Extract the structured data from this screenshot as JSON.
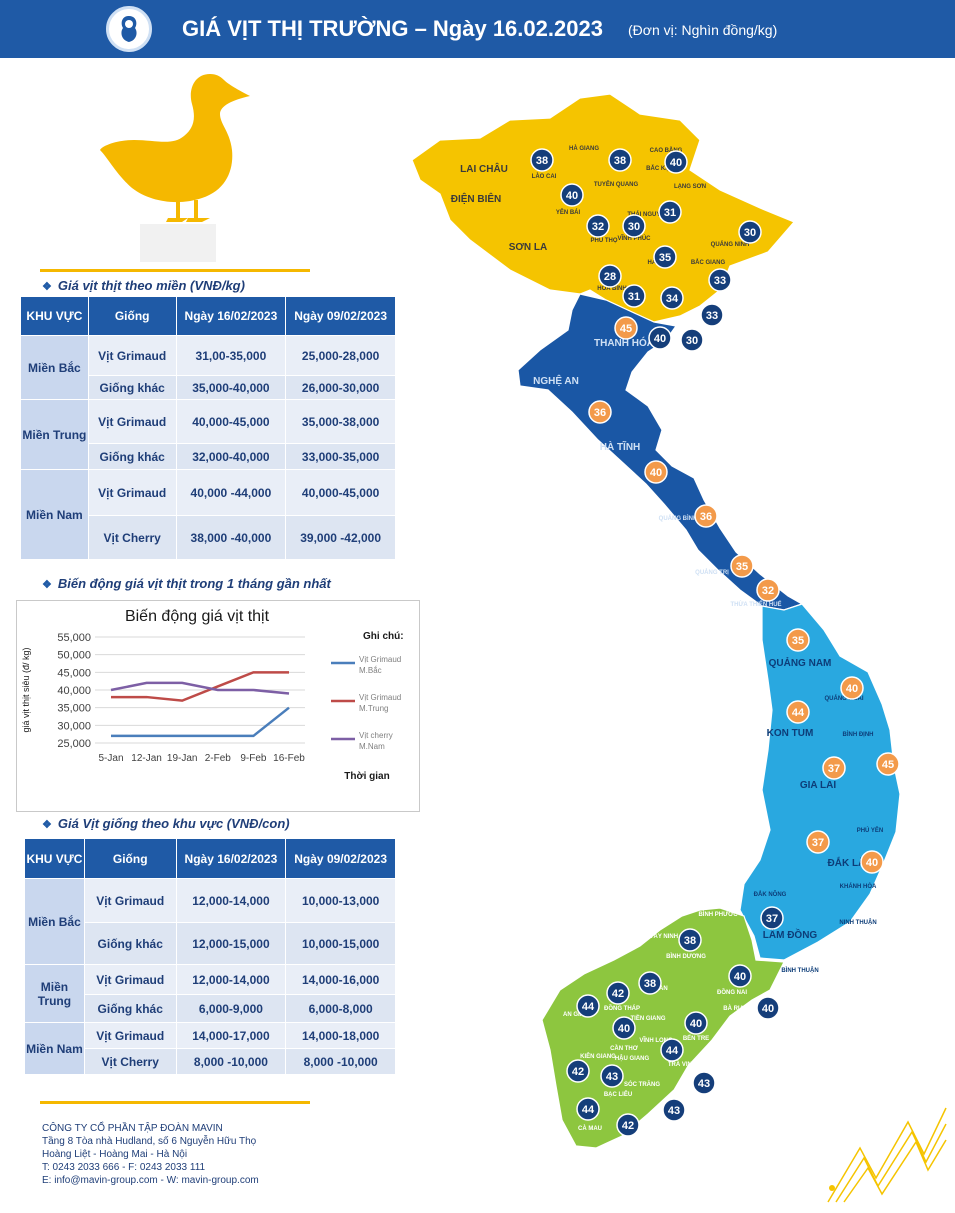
{
  "header": {
    "title": "GIÁ VỊT THỊ TRƯỜNG – Ngày 16.02.2023",
    "unit": "(Đơn vị: Nghìn đồng/kg)"
  },
  "section1": {
    "title": "Giá vịt thịt theo miền (VNĐ/kg)",
    "headers": [
      "KHU VỰC",
      "Giống",
      "Ngày 16/02/2023",
      "Ngày 09/02/2023"
    ],
    "regions": [
      {
        "name": "Miền Bắc",
        "rows": [
          {
            "breed": "Vịt Grimaud",
            "d1": "31,00-35,000",
            "d2": "25,000-28,000"
          },
          {
            "breed": "Giống khác",
            "d1": "35,000-40,000",
            "d2": "26,000-30,000"
          }
        ]
      },
      {
        "name": "Miền Trung",
        "rows": [
          {
            "breed": "Vịt Grimaud",
            "d1": "40,000-45,000",
            "d2": "35,000-38,000"
          },
          {
            "breed": "Giống khác",
            "d1": "32,000-40,000",
            "d2": "33,000-35,000"
          }
        ]
      },
      {
        "name": "Miền Nam",
        "rows": [
          {
            "breed": "Vịt Grimaud",
            "d1": "40,000 -44,000",
            "d2": "40,000-45,000"
          },
          {
            "breed": "Vịt Cherry",
            "d1": "38,000 -40,000",
            "d2": "39,000 -42,000"
          }
        ]
      }
    ]
  },
  "section2": {
    "title": "Biến động giá vịt thịt trong 1 tháng gần nhất"
  },
  "chart_data": {
    "type": "line",
    "title": "Biến động giá vịt thịt",
    "xlabel": "Thời gian",
    "ylabel": "giá vịt thịt siêu (đ/ kg)",
    "legend_title": "Ghi chú:",
    "legend_position": "right",
    "categories": [
      "5-Jan",
      "12-Jan",
      "19-Jan",
      "2-Feb",
      "9-Feb",
      "16-Feb"
    ],
    "ylim": [
      25000,
      55000
    ],
    "yticks": [
      "55,000",
      "50,000",
      "45,000",
      "40,000",
      "35,000",
      "30,000",
      "25,000"
    ],
    "grid": true,
    "series": [
      {
        "name": "Vịt Grimaud",
        "name2": "M.Bắc",
        "color": "#4a7ebb",
        "values": [
          27000,
          27000,
          27000,
          27000,
          27000,
          35000
        ]
      },
      {
        "name": "Vịt Grimaud",
        "name2": "M.Trung",
        "color": "#be4b48",
        "values": [
          38000,
          38000,
          37000,
          41000,
          45000,
          45000
        ]
      },
      {
        "name": "Vịt cherry",
        "name2": "M.Nam",
        "color": "#7d5fa5",
        "values": [
          40000,
          42000,
          42000,
          40000,
          40000,
          39000
        ]
      }
    ]
  },
  "section3": {
    "title": "Giá Vịt giống theo khu vực (VNĐ/con)",
    "headers": [
      "KHU VỰC",
      "Giống",
      "Ngày 16/02/2023",
      "Ngày 09/02/2023"
    ],
    "regions": [
      {
        "name": "Miền Bắc",
        "rows": [
          {
            "breed": "Vịt Grimaud",
            "d1": "12,000-14,000",
            "d2": "10,000-13,000"
          },
          {
            "breed": "Giống khác",
            "d1": "12,000-15,000",
            "d2": "10,000-15,000"
          }
        ]
      },
      {
        "name": "Miền Trung",
        "rows": [
          {
            "breed": "Vịt Grimaud",
            "d1": "12,000-14,000",
            "d2": "14,000-16,000"
          },
          {
            "breed": "Giống khác",
            "d1": "6,000-9,000",
            "d2": "6,000-8,000"
          }
        ]
      },
      {
        "name": "Miền Nam",
        "rows": [
          {
            "breed": "Vịt Grimaud",
            "d1": "14,000-17,000",
            "d2": "14,000-18,000"
          },
          {
            "breed": "Vịt Cherry",
            "d1": "8,000 -10,000",
            "d2": "8,000 -10,000"
          }
        ]
      }
    ]
  },
  "map": {
    "provinces": {
      "north": [
        "LAI CHÂU",
        "ĐIỆN BIÊN",
        "SƠN LA",
        "HÀ GIANG",
        "LÀO CAI",
        "TUYÊN QUANG",
        "CAO BẰNG",
        "BẮC KẠN",
        "LẠNG SƠN",
        "YÊN BÁI",
        "THÁI NGUYÊN",
        "PHÚ THỌ",
        "VĨNH PHÚC",
        "HÀ NỘI",
        "QUẢNG NINH",
        "BẮC GIANG",
        "HÒA BÌNH"
      ],
      "central": [
        "THANH HÓA",
        "NGHỆ AN",
        "HÀ TĨNH",
        "QUẢNG BÌNH",
        "QUẢNG TRỊ",
        "THỪA THIÊN HUẾ"
      ],
      "highlands": [
        "QUẢNG NAM",
        "QUẢNG NGÃI",
        "KON TUM",
        "BÌNH ĐỊNH",
        "GIA LAI",
        "PHÚ YÊN",
        "ĐẮK LẮK",
        "KHÁNH HÒA",
        "ĐẮK NÔNG",
        "LÂM ĐỒNG",
        "NINH THUẬN",
        "BÌNH THUẬN"
      ],
      "south": [
        "BÌNH PHƯỚC",
        "TÂY NINH",
        "BÌNH DƯƠNG",
        "ĐỒNG NAI",
        "LONG AN",
        "AN GIANG",
        "ĐỒNG THÁP",
        "TIỀN GIANG",
        "CẦN THƠ",
        "VĨNH LONG",
        "BẾN TRE",
        "KIÊN GIANG",
        "HẬU GIANG",
        "TRÀ VINH",
        "SÓC TRĂNG",
        "BẠC LIÊU",
        "CÀ MAU",
        "BÀ RỊA VŨNG TÀU"
      ]
    },
    "prices": [
      {
        "v": "38",
        "c": "navy",
        "x": 142,
        "y": 70
      },
      {
        "v": "38",
        "c": "navy",
        "x": 220,
        "y": 70
      },
      {
        "v": "40",
        "c": "navy",
        "x": 276,
        "y": 72
      },
      {
        "v": "40",
        "c": "navy",
        "x": 172,
        "y": 105
      },
      {
        "v": "31",
        "c": "navy",
        "x": 270,
        "y": 122
      },
      {
        "v": "32",
        "c": "navy",
        "x": 198,
        "y": 136
      },
      {
        "v": "30",
        "c": "navy",
        "x": 234,
        "y": 136
      },
      {
        "v": "30",
        "c": "navy",
        "x": 350,
        "y": 142
      },
      {
        "v": "35",
        "c": "navy",
        "x": 265,
        "y": 167
      },
      {
        "v": "28",
        "c": "navy",
        "x": 210,
        "y": 186
      },
      {
        "v": "33",
        "c": "navy",
        "x": 320,
        "y": 190
      },
      {
        "v": "31",
        "c": "navy",
        "x": 234,
        "y": 206
      },
      {
        "v": "34",
        "c": "navy",
        "x": 272,
        "y": 208
      },
      {
        "v": "33",
        "c": "navy",
        "x": 312,
        "y": 225
      },
      {
        "v": "40",
        "c": "navy",
        "x": 260,
        "y": 248
      },
      {
        "v": "30",
        "c": "navy",
        "x": 292,
        "y": 250
      },
      {
        "v": "45",
        "c": "orange",
        "x": 226,
        "y": 238
      },
      {
        "v": "36",
        "c": "orange",
        "x": 200,
        "y": 322
      },
      {
        "v": "40",
        "c": "orange",
        "x": 256,
        "y": 382
      },
      {
        "v": "36",
        "c": "orange",
        "x": 306,
        "y": 426
      },
      {
        "v": "35",
        "c": "orange",
        "x": 342,
        "y": 476
      },
      {
        "v": "32",
        "c": "orange",
        "x": 368,
        "y": 500
      },
      {
        "v": "35",
        "c": "orange",
        "x": 398,
        "y": 550
      },
      {
        "v": "40",
        "c": "orange",
        "x": 452,
        "y": 598
      },
      {
        "v": "44",
        "c": "orange",
        "x": 398,
        "y": 622
      },
      {
        "v": "37",
        "c": "orange",
        "x": 434,
        "y": 678
      },
      {
        "v": "45",
        "c": "orange",
        "x": 488,
        "y": 674
      },
      {
        "v": "37",
        "c": "orange",
        "x": 418,
        "y": 752
      },
      {
        "v": "40",
        "c": "orange",
        "x": 472,
        "y": 772
      },
      {
        "v": "37",
        "c": "navy",
        "x": 372,
        "y": 828
      },
      {
        "v": "38",
        "c": "navy",
        "x": 290,
        "y": 850
      },
      {
        "v": "40",
        "c": "navy",
        "x": 340,
        "y": 886
      },
      {
        "v": "38",
        "c": "navy",
        "x": 250,
        "y": 893
      },
      {
        "v": "42",
        "c": "navy",
        "x": 218,
        "y": 903
      },
      {
        "v": "44",
        "c": "navy",
        "x": 188,
        "y": 916
      },
      {
        "v": "40",
        "c": "navy",
        "x": 368,
        "y": 918
      },
      {
        "v": "40",
        "c": "navy",
        "x": 224,
        "y": 938
      },
      {
        "v": "40",
        "c": "navy",
        "x": 296,
        "y": 933
      },
      {
        "v": "44",
        "c": "navy",
        "x": 272,
        "y": 960
      },
      {
        "v": "42",
        "c": "navy",
        "x": 178,
        "y": 981
      },
      {
        "v": "43",
        "c": "navy",
        "x": 212,
        "y": 986
      },
      {
        "v": "43",
        "c": "navy",
        "x": 304,
        "y": 993
      },
      {
        "v": "44",
        "c": "navy",
        "x": 188,
        "y": 1019
      },
      {
        "v": "42",
        "c": "navy",
        "x": 228,
        "y": 1035
      },
      {
        "v": "43",
        "c": "navy",
        "x": 274,
        "y": 1020
      }
    ]
  },
  "footer": {
    "lines": [
      "CÔNG TY CỔ PHẦN TẬP ĐOÀN MAVIN",
      "Tầng 8 Tòa nhà Hudland, số 6 Nguyễn Hữu Thọ",
      "Hoàng Liệt - Hoàng Mai - Hà Nội",
      "T: 0243 2033 666 - F: 0243 2033 111",
      "E: info@mavin-group.com - W: mavin-group.com"
    ]
  },
  "colors": {
    "navy": "#1f5aa6",
    "north": "#f5c400",
    "central": "#1a57a5",
    "highlands": "#29a8e0",
    "south": "#8dc63f",
    "badge_navy": "#153e7a",
    "badge_orange": "#f39a4a"
  }
}
